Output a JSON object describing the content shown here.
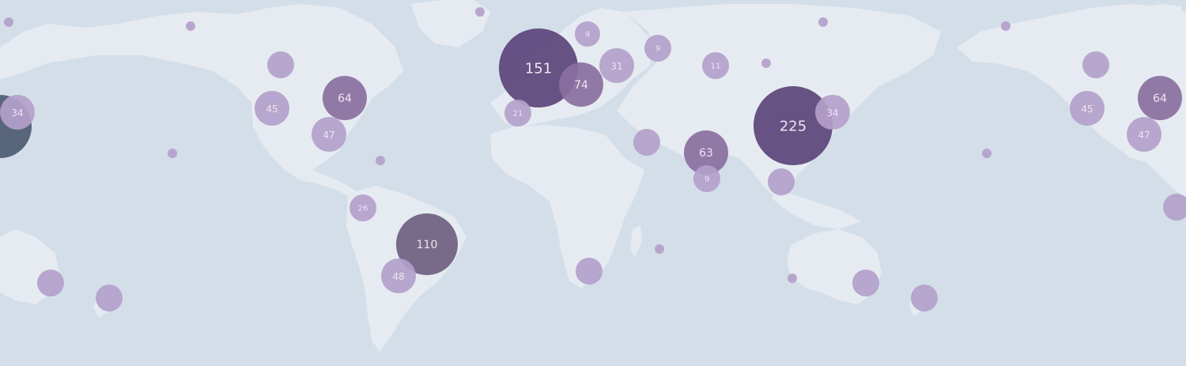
{
  "map": {
    "colors": {
      "ocean": "#d3dee9",
      "land": "#e6ebf1",
      "cluster_small": "#b39fca",
      "cluster_medium": "#8a6f9f",
      "cluster_large": "#5b447a",
      "cluster_dark_slate": "#4d5b72",
      "cluster_muted": "#6e5f80",
      "label_light": "#ece6f3"
    },
    "clusters": [
      {
        "id": "west-edge-dark",
        "count": "",
        "tone": "cluster_dark_slate"
      },
      {
        "id": "east-coast-us-left",
        "count": "34",
        "tone": "cluster_small"
      },
      {
        "id": "canada-west",
        "count": "",
        "tone": "cluster_small"
      },
      {
        "id": "us-west",
        "count": "45",
        "tone": "cluster_small"
      },
      {
        "id": "us-east",
        "count": "64",
        "tone": "cluster_medium"
      },
      {
        "id": "us-south",
        "count": "47",
        "tone": "cluster_small"
      },
      {
        "id": "europe-west",
        "count": "151",
        "tone": "cluster_large"
      },
      {
        "id": "europe-central",
        "count": "74",
        "tone": "cluster_medium"
      },
      {
        "id": "scandinavia",
        "count": "9",
        "tone": "cluster_small"
      },
      {
        "id": "eastern-europe",
        "count": "31",
        "tone": "cluster_small"
      },
      {
        "id": "russia-west",
        "count": "9",
        "tone": "cluster_small"
      },
      {
        "id": "iberia",
        "count": "21",
        "tone": "cluster_small"
      },
      {
        "id": "central-asia",
        "count": "11",
        "tone": "cluster_small"
      },
      {
        "id": "china",
        "count": "225",
        "tone": "cluster_large"
      },
      {
        "id": "japan-korea",
        "count": "34",
        "tone": "cluster_small"
      },
      {
        "id": "middle-east",
        "count": "",
        "tone": "cluster_small"
      },
      {
        "id": "india",
        "count": "63",
        "tone": "cluster_medium"
      },
      {
        "id": "south-india",
        "count": "9",
        "tone": "cluster_small"
      },
      {
        "id": "southeast-asia",
        "count": "",
        "tone": "cluster_small"
      },
      {
        "id": "peru",
        "count": "26",
        "tone": "cluster_small"
      },
      {
        "id": "brazil",
        "count": "110",
        "tone": "cluster_muted"
      },
      {
        "id": "argentina",
        "count": "48",
        "tone": "cluster_small"
      },
      {
        "id": "south-africa",
        "count": "",
        "tone": "cluster_small"
      },
      {
        "id": "australia-west-left",
        "count": "",
        "tone": "cluster_small"
      },
      {
        "id": "new-zealand-left",
        "count": "",
        "tone": "cluster_small"
      },
      {
        "id": "australia-east",
        "count": "",
        "tone": "cluster_small"
      },
      {
        "id": "new-zealand",
        "count": "",
        "tone": "cluster_small"
      },
      {
        "id": "canada-west-right",
        "count": "",
        "tone": "cluster_small"
      },
      {
        "id": "us-west-right",
        "count": "45",
        "tone": "cluster_small"
      },
      {
        "id": "us-east-right",
        "count": "64",
        "tone": "cluster_medium"
      },
      {
        "id": "us-south-right",
        "count": "47",
        "tone": "cluster_small"
      },
      {
        "id": "brazil-edge-right",
        "count": "",
        "tone": "cluster_small"
      },
      {
        "id": "pt-alaska-left",
        "count": "",
        "tone": "cluster_small"
      },
      {
        "id": "pt-alaska",
        "count": "",
        "tone": "cluster_small"
      },
      {
        "id": "pt-pacific",
        "count": "",
        "tone": "cluster_small"
      },
      {
        "id": "pt-caribbean",
        "count": "",
        "tone": "cluster_small"
      },
      {
        "id": "pt-iceland",
        "count": "",
        "tone": "cluster_small"
      },
      {
        "id": "pt-mongolia",
        "count": "",
        "tone": "cluster_small"
      },
      {
        "id": "pt-madagascar",
        "count": "",
        "tone": "cluster_small"
      },
      {
        "id": "pt-australia-west",
        "count": "",
        "tone": "cluster_small"
      },
      {
        "id": "pt-siberia",
        "count": "",
        "tone": "cluster_small"
      },
      {
        "id": "pt-kamchatka",
        "count": "",
        "tone": "cluster_small"
      },
      {
        "id": "pt-pacific-right",
        "count": "",
        "tone": "cluster_small"
      }
    ]
  }
}
